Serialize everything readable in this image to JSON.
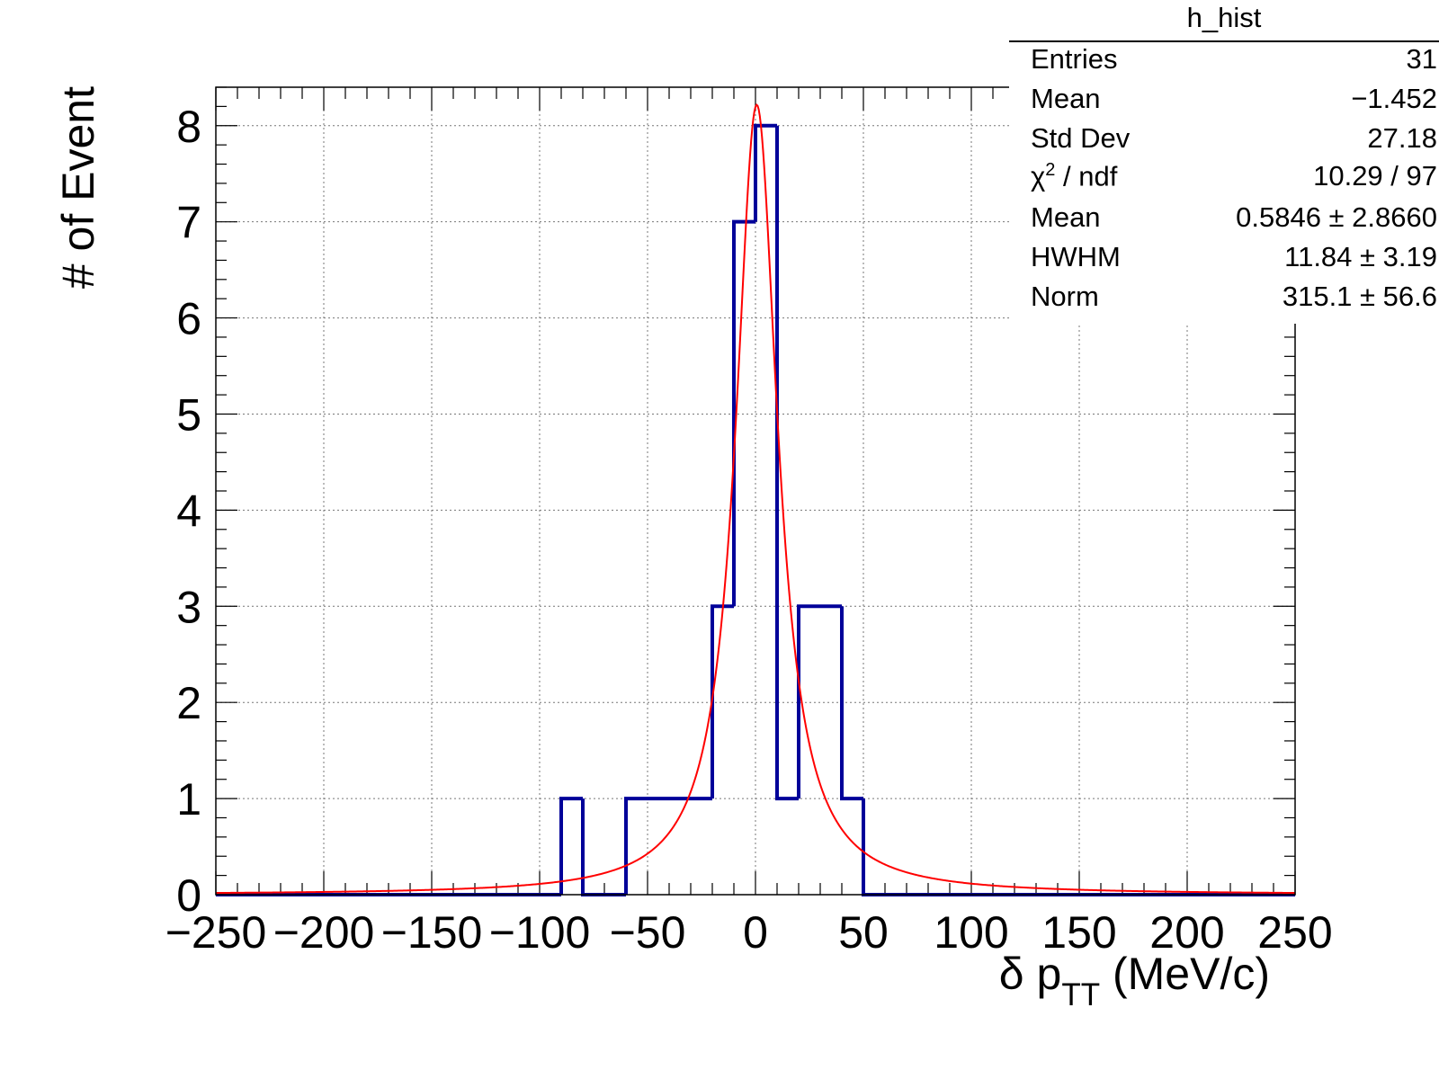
{
  "chart_data": {
    "type": "bar",
    "title": "",
    "xlabel": "δ p_TT (MeV/c)",
    "xlabel_parts": {
      "symbol": "δ p",
      "subscript": "TT",
      "unit": "(MeV/c)"
    },
    "ylabel": "# of Event",
    "xlim": [
      -250,
      250
    ],
    "ylim": [
      0,
      8.4
    ],
    "grid": true,
    "xticks": [
      -250,
      -200,
      -150,
      -100,
      -50,
      0,
      50,
      100,
      150,
      200,
      250
    ],
    "xtick_labels": [
      "−250",
      "−200",
      "−150",
      "−100",
      "−50",
      "0",
      "50",
      "100",
      "150",
      "200",
      "250"
    ],
    "yticks": [
      0,
      1,
      2,
      3,
      4,
      5,
      6,
      7,
      8
    ],
    "ytick_labels": [
      "0",
      "1",
      "2",
      "3",
      "4",
      "5",
      "6",
      "7",
      "8"
    ],
    "series": [
      {
        "kind": "histogram",
        "color": "#000099",
        "bin_edges": [
          -250,
          -240,
          -230,
          -220,
          -210,
          -200,
          -190,
          -180,
          -170,
          -160,
          -150,
          -140,
          -130,
          -120,
          -110,
          -100,
          -90,
          -80,
          -70,
          -60,
          -50,
          -40,
          -30,
          -20,
          -10,
          0,
          10,
          20,
          30,
          40,
          50,
          60,
          70,
          80,
          90,
          100,
          110,
          120,
          130,
          140,
          150,
          160,
          170,
          180,
          190,
          200,
          210,
          220,
          230,
          240,
          250
        ],
        "values": [
          0,
          0,
          0,
          0,
          0,
          0,
          0,
          0,
          0,
          0,
          0,
          0,
          0,
          0,
          0,
          0,
          1,
          0,
          0,
          1,
          1,
          1,
          1,
          3,
          7,
          8,
          1,
          3,
          3,
          1,
          0,
          0,
          0,
          0,
          0,
          0,
          0,
          0,
          0,
          0,
          0,
          0,
          0,
          0,
          0,
          0,
          0,
          0,
          0,
          0
        ]
      },
      {
        "kind": "fit",
        "function": "lorentzian",
        "color": "#ff0000",
        "mean": 0.5846,
        "hwhm": 11.84,
        "norm": 315.1,
        "bin_width": 10
      }
    ],
    "stats_box": {
      "title": "h_hist",
      "rows": [
        {
          "key": "Entries",
          "value": "31"
        },
        {
          "key": "Mean",
          "value": "−1.452"
        },
        {
          "key": "Std Dev",
          "value": "27.18"
        },
        {
          "key": "χ",
          "key_sup": "2",
          "key_tail": " / ndf",
          "value": "10.29 / 97"
        },
        {
          "key": "Mean",
          "value": "0.5846 ± 2.8660"
        },
        {
          "key": "HWHM",
          "value": "11.84 ± 3.19"
        },
        {
          "key": "Norm",
          "value": "315.1 ± 56.6"
        }
      ]
    }
  }
}
